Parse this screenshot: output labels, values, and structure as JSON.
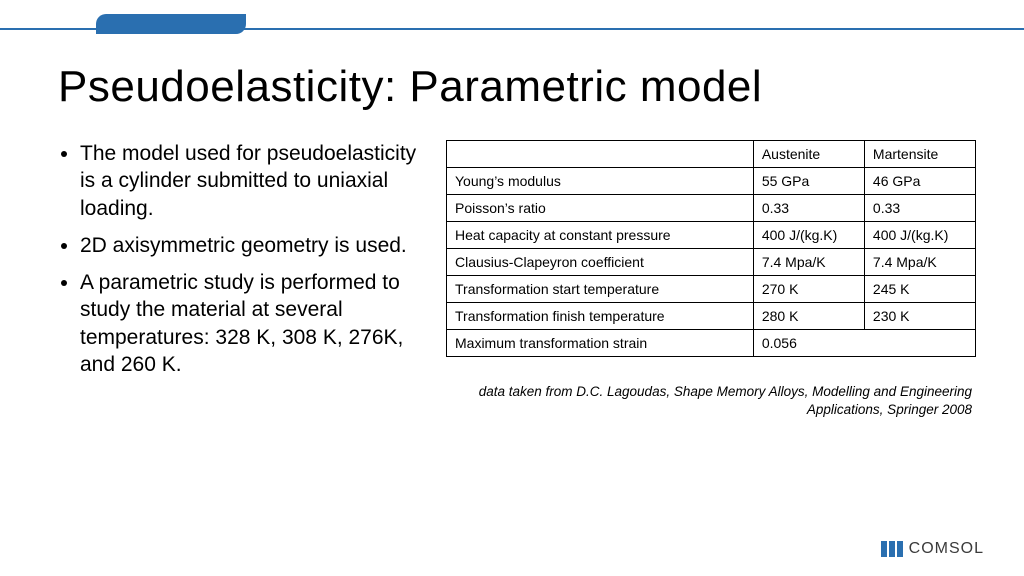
{
  "colors": {
    "accent": "#2a6fb0",
    "text": "#000000",
    "border": "#000000",
    "background": "#ffffff",
    "logo_blue": "#2a6fb0",
    "logo_gray": "#3b3b3b"
  },
  "title": "Pseudoelasticity: Parametric model",
  "bullets": [
    "The model used for pseudoelasticity is a cylinder submitted to uniaxial loading.",
    "2D axisymmetric geometry is used.",
    "A parametric study is performed to study the material at several temperatures: 328 K, 308 K, 276K, and 260 K."
  ],
  "table": {
    "type": "table",
    "columns": [
      "",
      "Austenite",
      "Martensite"
    ],
    "column_widths_pct": [
      58,
      21,
      21
    ],
    "fontsize": 14,
    "border_color": "#000000",
    "rows": [
      {
        "param": "Young’s modulus",
        "aus": "55 GPa",
        "mar": "46 GPa",
        "span": false
      },
      {
        "param": "Poisson’s ratio",
        "aus": "0.33",
        "mar": "0.33",
        "span": false
      },
      {
        "param": "Heat capacity at constant pressure",
        "aus": "400 J/(kg.K)",
        "mar": "400 J/(kg.K)",
        "span": false
      },
      {
        "param": "Clausius-Clapeyron coefficient",
        "aus": "7.4 Mpa/K",
        "mar": "7.4 Mpa/K",
        "span": false
      },
      {
        "param": "Transformation start temperature",
        "aus": "270 K",
        "mar": "245 K",
        "span": false
      },
      {
        "param": "Transformation finish temperature",
        "aus": "280 K",
        "mar": "230 K",
        "span": false
      },
      {
        "param": "Maximum transformation strain",
        "aus": "0.056",
        "mar": "",
        "span": true
      }
    ]
  },
  "citation": "data taken from D.C. Lagoudas, Shape Memory Alloys, Modelling and Engineering Applications, Springer 2008",
  "logo": {
    "text": "COMSOL"
  }
}
